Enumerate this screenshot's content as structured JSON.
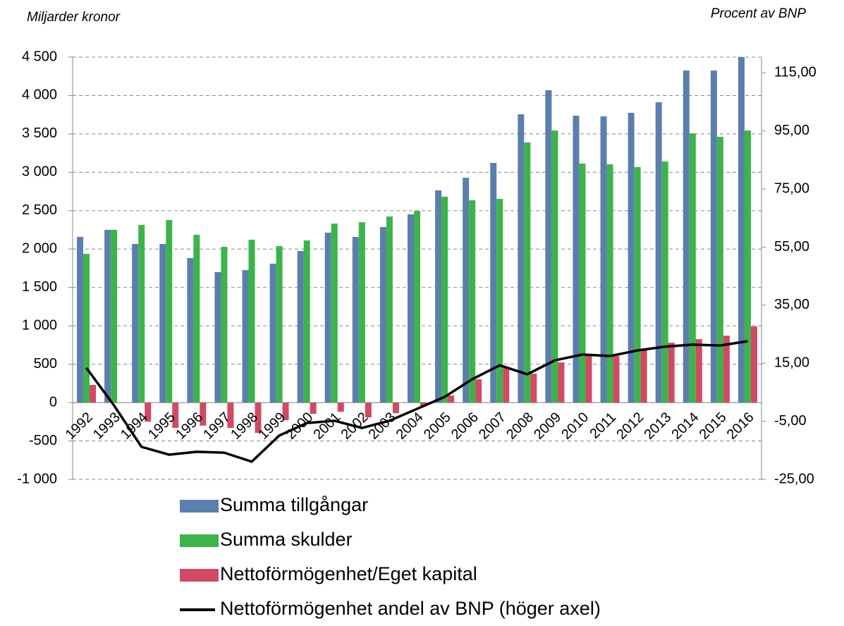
{
  "chart_data": {
    "type": "bar",
    "y_label": "Miljarder kronor",
    "y2_label": "Procent av BNP",
    "categories": [
      "1992",
      "1993",
      "1994",
      "1995",
      "1996",
      "1997",
      "1998",
      "1999",
      "2000",
      "2001",
      "2002",
      "2003",
      "2004",
      "2005",
      "2006",
      "2007",
      "2008",
      "2009",
      "2010",
      "2011",
      "2012",
      "2013",
      "2014",
      "2015",
      "2016"
    ],
    "series": [
      {
        "name": "Summa tillgångar",
        "color": "#5b7fad",
        "type": "bar",
        "values": [
          2158,
          2250,
          2066,
          2066,
          1882,
          1700,
          1726,
          1809,
          1974,
          2213,
          2158,
          2286,
          2452,
          2764,
          2929,
          3122,
          3755,
          4068,
          3737,
          3728,
          3774,
          3912,
          4325,
          4325,
          4500
        ]
      },
      {
        "name": "Summa skulder",
        "color": "#3cb44a",
        "type": "bar",
        "values": [
          1937,
          2250,
          2314,
          2378,
          2185,
          2029,
          2121,
          2038,
          2112,
          2332,
          2350,
          2424,
          2497,
          2681,
          2635,
          2654,
          3388,
          3544,
          3113,
          3104,
          3067,
          3140,
          3507,
          3462,
          3544
        ]
      },
      {
        "name": "Nettoförmögenhet/Eget kapital",
        "color": "#d04a63",
        "type": "bar",
        "values": [
          230,
          0,
          -248,
          -330,
          -300,
          -330,
          -395,
          -230,
          -147,
          -120,
          -193,
          -138,
          -46,
          92,
          303,
          450,
          376,
          523,
          615,
          606,
          698,
          780,
          826,
          872,
          992
        ]
      },
      {
        "name": "Nettoförmögenhet andel av BNP (höger axel)",
        "color": "#000000",
        "type": "line",
        "axis": "y2",
        "values": [
          13.4,
          0.5,
          -13.8,
          -16.5,
          -15.5,
          -15.8,
          -18.9,
          -9.9,
          -5.6,
          -4.8,
          -7.3,
          -4.8,
          -0.7,
          3.4,
          9.5,
          14.3,
          11.2,
          16.0,
          18.0,
          17.5,
          19.4,
          20.7,
          21.4,
          21.1,
          22.6
        ]
      }
    ],
    "ylim": [
      -1000,
      4500
    ],
    "yticks": [
      {
        "value": -1000,
        "label": "-1 000"
      },
      -500,
      0,
      500,
      {
        "value": 1000,
        "label": "1 000"
      },
      {
        "value": 1500,
        "label": "1 500"
      },
      {
        "value": 2000,
        "label": "2 000"
      },
      {
        "value": 2500,
        "label": "2 500"
      },
      {
        "value": 3000,
        "label": "3 000"
      },
      {
        "value": 3500,
        "label": "3 500"
      },
      {
        "value": 4000,
        "label": "4 000"
      },
      {
        "value": 4500,
        "label": "4 500"
      }
    ],
    "y2lim": [
      -25,
      120.45
    ],
    "y2ticks": [
      {
        "value": -25,
        "label": "-25,00"
      },
      {
        "value": -5,
        "label": "-5,00"
      },
      {
        "value": 15,
        "label": "15,00"
      },
      {
        "value": 35,
        "label": "35,00"
      },
      {
        "value": 55,
        "label": "55,00"
      },
      {
        "value": 75,
        "label": "75,00"
      },
      {
        "value": 95,
        "label": "95,00"
      },
      {
        "value": 115,
        "label": "115,00"
      }
    ],
    "grid": true
  }
}
